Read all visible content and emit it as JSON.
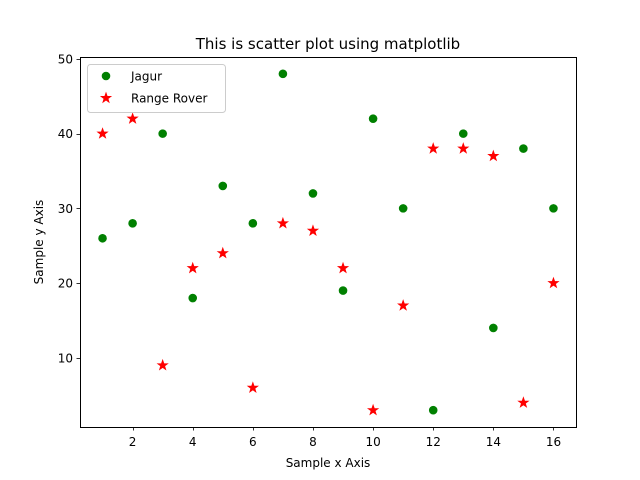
{
  "chart_data": {
    "type": "scatter",
    "title": "This is scatter plot using matplotlib",
    "xlabel": "Sample x Axis",
    "ylabel": "Sample y Axis",
    "xlim": [
      0.25,
      16.75
    ],
    "ylim": [
      0.75,
      50.25
    ],
    "xticks": [
      2,
      4,
      6,
      8,
      10,
      12,
      14,
      16
    ],
    "yticks": [
      10,
      20,
      30,
      40,
      50
    ],
    "grid": false,
    "legend_position": "top-left",
    "series": [
      {
        "name": "Jagur",
        "marker": "circle",
        "color": "#008000",
        "x": [
          1,
          2,
          3,
          4,
          5,
          6,
          7,
          8,
          9,
          10,
          11,
          12,
          13,
          14,
          15,
          16
        ],
        "y": [
          26,
          28,
          40,
          18,
          33,
          28,
          48,
          32,
          19,
          42,
          30,
          3,
          40,
          14,
          38,
          30
        ]
      },
      {
        "name": "Range Rover",
        "marker": "star",
        "color": "#ff0000",
        "x": [
          1,
          2,
          3,
          4,
          5,
          6,
          7,
          8,
          9,
          10,
          11,
          12,
          13,
          14,
          15,
          16
        ],
        "y": [
          40,
          42,
          9,
          22,
          24,
          6,
          28,
          27,
          22,
          3,
          17,
          38,
          38,
          37,
          4,
          20
        ]
      }
    ]
  }
}
